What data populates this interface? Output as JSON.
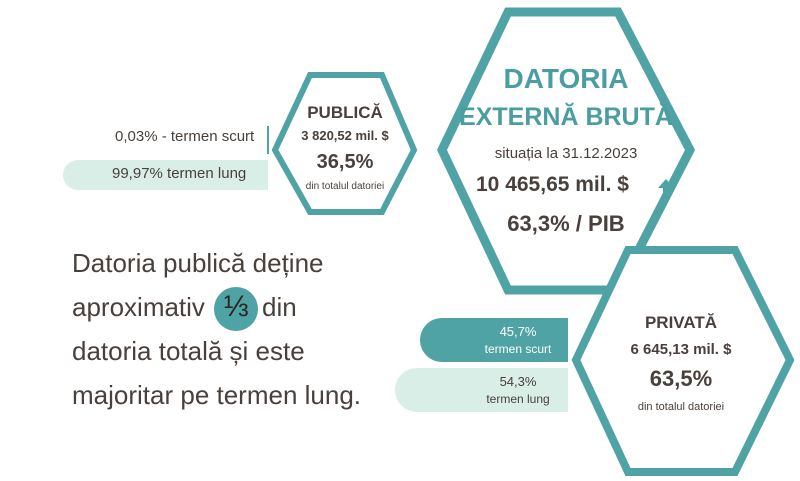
{
  "main": {
    "title_line1": "DATORIA",
    "title_line2": "EXTERNĂ BRUTĂ",
    "situation": "situația la 31.12.2023",
    "total": "10 465,65 mil. $",
    "gdp_share": "63,3% / PIB"
  },
  "public": {
    "title": "PUBLICĂ",
    "amount": "3 820,52 mil. $",
    "share": "36,5%",
    "share_note": "din totalul datoriei",
    "short_term": "0,03% - termen scurt",
    "long_term": "99,97%  termen lung"
  },
  "private": {
    "title": "PRIVATĂ",
    "amount": "6 645,13 mil. $",
    "share": "63,5%",
    "share_note": "din totalul datoriei",
    "short_term_share": "45,7%",
    "short_term_label": "termen scurt",
    "long_term_share": "54,3%",
    "long_term_label": "termen lung"
  },
  "note": {
    "line1": "Datoria publică deține",
    "line2_before": "aproximativ",
    "fraction": "⅓",
    "line2_after": "din",
    "line3": "datoria totală și este",
    "line4": "majoritar pe termen lung."
  }
}
